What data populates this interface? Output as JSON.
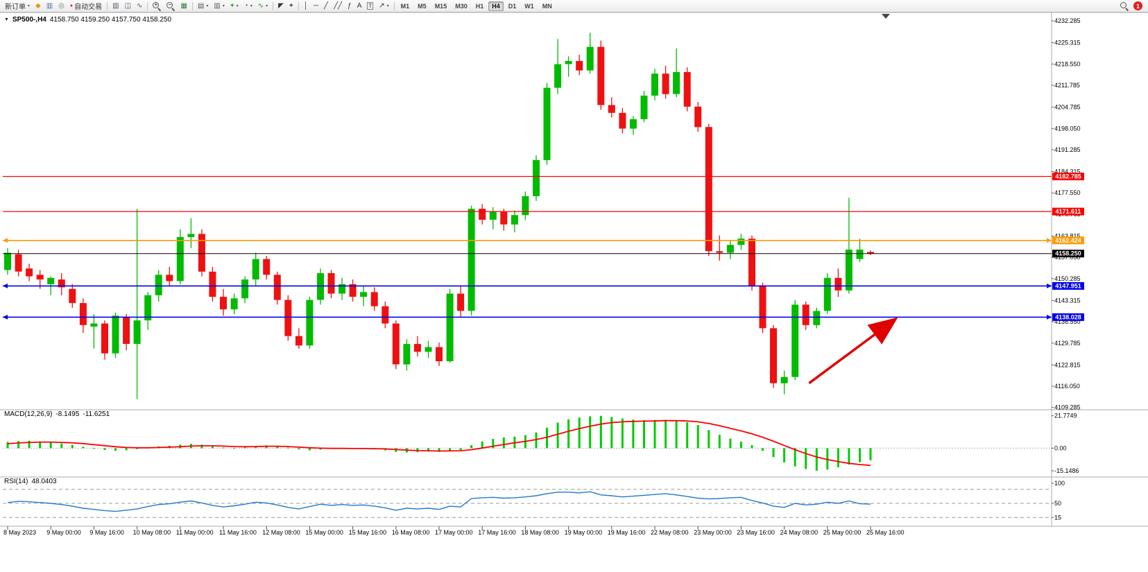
{
  "toolbar": {
    "new_order_label": "新订单",
    "auto_trading_label": "自动交易",
    "items": [
      {
        "type": "button",
        "name": "new-order-button",
        "label": "新订单",
        "caret": true
      },
      {
        "type": "icon",
        "name": "quotes-icon",
        "glyph": "◆",
        "color": "#d4a017"
      },
      {
        "type": "icon",
        "name": "chart-window-icon",
        "glyph": "▥",
        "color": "#4a6fa5"
      },
      {
        "type": "icon",
        "name": "refresh-icon",
        "glyph": "◎",
        "color": "#6f7f6f"
      },
      {
        "type": "button",
        "name": "auto-trading-button",
        "label": "自动交易",
        "icon_glyph": "●",
        "icon_color": "#cc2222"
      },
      {
        "type": "sep"
      },
      {
        "type": "icon",
        "name": "bar-chart-icon",
        "glyph": "▥",
        "color": "#556"
      },
      {
        "type": "icon",
        "name": "candlestick-chart-icon",
        "glyph": "◫",
        "color": "#556"
      },
      {
        "type": "icon",
        "name": "line-chart-icon",
        "glyph": "∿",
        "color": "#556"
      },
      {
        "type": "sep"
      },
      {
        "type": "icon",
        "name": "zoom-in-icon",
        "magnifier": true,
        "sign": "+"
      },
      {
        "type": "icon",
        "name": "zoom-out-icon",
        "magnifier": true,
        "sign": "−"
      },
      {
        "type": "icon",
        "name": "tile-windows-icon",
        "glyph": "▦",
        "color": "#3a7a3a"
      },
      {
        "type": "sep"
      },
      {
        "type": "icon",
        "name": "cascade-windows-icon",
        "glyph": "▤",
        "color": "#556",
        "caret": true
      },
      {
        "type": "icon",
        "name": "arrange-windows-icon",
        "glyph": "▥",
        "color": "#556",
        "caret": true
      },
      {
        "type": "icon",
        "name": "new-chart-icon",
        "glyph": "+",
        "color": "#1a9a1a",
        "bold": true,
        "caret": true
      },
      {
        "type": "icon",
        "name": "timeframe-clock-icon",
        "glyph": "◔",
        "color": "#556",
        "caret": true
      },
      {
        "type": "icon",
        "name": "indicators-icon",
        "glyph": "∿",
        "color": "#1a9a1a",
        "caret": true
      },
      {
        "type": "sep"
      },
      {
        "type": "icon",
        "name": "cursor-icon",
        "glyph": "◤",
        "color": "#333"
      },
      {
        "type": "icon",
        "name": "crosshair-icon",
        "glyph": "+",
        "color": "#333",
        "bold": true
      },
      {
        "type": "sep"
      },
      {
        "type": "icon",
        "name": "vertical-line-icon",
        "glyph": "│",
        "color": "#333"
      },
      {
        "type": "icon",
        "name": "horizontal-line-icon",
        "glyph": "─",
        "color": "#333"
      },
      {
        "type": "icon",
        "name": "trendline-icon",
        "glyph": "╱",
        "color": "#333"
      },
      {
        "type": "icon",
        "name": "channel-icon",
        "glyph": "╱╱",
        "color": "#333"
      },
      {
        "type": "icon",
        "name": "fibonacci-icon",
        "glyph": "ƒ",
        "color": "#333"
      },
      {
        "type": "icon",
        "name": "text-icon",
        "glyph": "A",
        "color": "#333"
      },
      {
        "type": "icon",
        "name": "label-icon",
        "glyph": "T",
        "color": "#333",
        "boxed": true
      },
      {
        "type": "icon",
        "name": "arrows-icon",
        "glyph": "↗",
        "color": "#333",
        "caret": true
      },
      {
        "type": "sep"
      },
      {
        "type": "timeframes"
      }
    ],
    "timeframes": [
      "M1",
      "M5",
      "M15",
      "M30",
      "H1",
      "H4",
      "D1",
      "W1",
      "MN"
    ],
    "active_timeframe": "H4",
    "notification_count": "1"
  },
  "chart_data": [
    {
      "type": "candlestick",
      "title": "SP500-,H4",
      "ohlc_display": "4158.750 4159.250 4157.750 4158.250",
      "ylim": [
        4109.0,
        4233.4
      ],
      "colors": {
        "up": "#00bb00",
        "down": "#ee1111"
      },
      "y_ticks": [
        "4232.285",
        "4225.315",
        "4218.550",
        "4211.785",
        "4204.785",
        "4198.050",
        "4191.285",
        "4184.315",
        "4177.550",
        "4170.785",
        "4163.815",
        "4157.050",
        "4150.285",
        "4143.315",
        "4136.550",
        "4129.785",
        "4122.815",
        "4116.050",
        "4109.285"
      ],
      "x_labels": [
        "8 May 2023",
        "9 May 00:00",
        "9 May 16:00",
        "10 May 08:00",
        "11 May 00:00",
        "11 May 16:00",
        "12 May 08:00",
        "15 May 00:00",
        "15 May 16:00",
        "16 May 08:00",
        "17 May 00:00",
        "17 May 16:00",
        "18 May 08:00",
        "19 May 00:00",
        "19 May 16:00",
        "22 May 08:00",
        "23 May 00:00",
        "23 May 16:00",
        "24 May 08:00",
        "25 May 00:00",
        "25 May 16:00"
      ],
      "levels": [
        {
          "price": 4182.785,
          "label": "4182.785",
          "color": "#ff0000",
          "width": 1.2,
          "handles": false
        },
        {
          "price": 4171.611,
          "label": "4171.611",
          "color": "#ff0000",
          "width": 1.2,
          "handles": false
        },
        {
          "price": 4162.424,
          "label": "4162.424",
          "color": "#ff9900",
          "width": 1.6,
          "handles": true
        },
        {
          "price": 4158.25,
          "label": "4158.250",
          "color": "#000000",
          "width": 1.0,
          "handles": false
        },
        {
          "price": 4147.951,
          "label": "4147.951",
          "color": "#0000ee",
          "width": 1.6,
          "handles": true
        },
        {
          "price": 4138.028,
          "label": "4138.028",
          "color": "#0000ee",
          "width": 1.6,
          "handles": true
        }
      ],
      "arrow": {
        "from_bar": 74.3,
        "from_price": 4117.0,
        "to_bar": 82.0,
        "to_price": 4136.6,
        "color": "#e00000"
      },
      "ohlc": [
        [
          4153.0,
          4160.0,
          4151.5,
          4158.5
        ],
        [
          4158.0,
          4159.5,
          4151.0,
          4152.5
        ],
        [
          4153.5,
          4155.0,
          4149.5,
          4151.0
        ],
        [
          4151.5,
          4153.0,
          4147.0,
          4150.0
        ],
        [
          4148.5,
          4151.0,
          4145.0,
          4150.5
        ],
        [
          4150.0,
          4152.0,
          4145.0,
          4147.5
        ],
        [
          4147.0,
          4148.5,
          4141.0,
          4142.5
        ],
        [
          4142.5,
          4144.0,
          4133.0,
          4135.5
        ],
        [
          4135.0,
          4139.0,
          4128.0,
          4136.0
        ],
        [
          4136.0,
          4137.0,
          4124.5,
          4126.5
        ],
        [
          4126.5,
          4139.5,
          4125.0,
          4138.5
        ],
        [
          4138.0,
          4139.0,
          4127.5,
          4129.5
        ],
        [
          4129.5,
          4172.5,
          4112.0,
          4137.0
        ],
        [
          4137.0,
          4146.0,
          4134.0,
          4145.0
        ],
        [
          4145.0,
          4153.0,
          4143.0,
          4151.5
        ],
        [
          4151.5,
          4154.0,
          4148.0,
          4149.5
        ],
        [
          4149.5,
          4166.0,
          4148.5,
          4163.5
        ],
        [
          4163.5,
          4169.5,
          4160.0,
          4164.5
        ],
        [
          4164.5,
          4166.0,
          4151.0,
          4152.5
        ],
        [
          4152.5,
          4154.0,
          4143.0,
          4144.5
        ],
        [
          4144.5,
          4147.0,
          4138.5,
          4140.5
        ],
        [
          4140.5,
          4145.5,
          4139.0,
          4144.0
        ],
        [
          4144.0,
          4151.0,
          4142.5,
          4150.0
        ],
        [
          4150.0,
          4158.5,
          4148.0,
          4156.5
        ],
        [
          4156.5,
          4157.5,
          4150.0,
          4151.5
        ],
        [
          4151.5,
          4152.5,
          4142.0,
          4143.5
        ],
        [
          4143.5,
          4145.0,
          4130.5,
          4132.0
        ],
        [
          4132.0,
          4134.5,
          4128.0,
          4129.0
        ],
        [
          4129.0,
          4144.5,
          4128.0,
          4143.5
        ],
        [
          4143.5,
          4153.5,
          4142.0,
          4152.0
        ],
        [
          4152.0,
          4153.0,
          4144.0,
          4145.5
        ],
        [
          4145.5,
          4150.5,
          4143.5,
          4148.5
        ],
        [
          4148.5,
          4150.0,
          4143.0,
          4144.5
        ],
        [
          4144.5,
          4148.0,
          4141.5,
          4146.0
        ],
        [
          4146.0,
          4147.5,
          4140.0,
          4141.5
        ],
        [
          4141.5,
          4143.0,
          4134.5,
          4136.0
        ],
        [
          4136.0,
          4137.0,
          4121.5,
          4123.0
        ],
        [
          4123.0,
          4131.0,
          4121.0,
          4129.5
        ],
        [
          4129.5,
          4132.0,
          4125.5,
          4127.0
        ],
        [
          4127.0,
          4130.5,
          4125.0,
          4128.5
        ],
        [
          4128.5,
          4130.0,
          4122.5,
          4124.0
        ],
        [
          4124.0,
          4147.0,
          4123.5,
          4145.5
        ],
        [
          4145.5,
          4148.0,
          4138.0,
          4140.0
        ],
        [
          4140.0,
          4173.5,
          4138.5,
          4172.5
        ],
        [
          4172.5,
          4174.0,
          4167.5,
          4169.0
        ],
        [
          4169.0,
          4173.0,
          4166.0,
          4171.5
        ],
        [
          4171.5,
          4172.5,
          4165.5,
          4167.5
        ],
        [
          4167.5,
          4172.0,
          4165.0,
          4170.5
        ],
        [
          4170.5,
          4178.0,
          4169.0,
          4176.5
        ],
        [
          4176.5,
          4189.5,
          4175.0,
          4188.0
        ],
        [
          4188.0,
          4212.5,
          4186.5,
          4211.0
        ],
        [
          4211.0,
          4226.5,
          4209.0,
          4218.5
        ],
        [
          4218.5,
          4221.0,
          4214.5,
          4219.5
        ],
        [
          4219.5,
          4221.5,
          4215.0,
          4216.5
        ],
        [
          4216.5,
          4228.5,
          4215.5,
          4224.0
        ],
        [
          4224.0,
          4226.0,
          4204.0,
          4205.5
        ],
        [
          4205.5,
          4208.0,
          4201.5,
          4203.0
        ],
        [
          4203.0,
          4204.5,
          4196.5,
          4198.0
        ],
        [
          4198.0,
          4202.0,
          4196.0,
          4201.0
        ],
        [
          4201.0,
          4210.0,
          4200.0,
          4208.5
        ],
        [
          4208.5,
          4217.0,
          4207.0,
          4215.5
        ],
        [
          4215.5,
          4218.0,
          4207.5,
          4209.0
        ],
        [
          4209.0,
          4223.5,
          4208.0,
          4216.0
        ],
        [
          4216.0,
          4217.5,
          4203.5,
          4205.0
        ],
        [
          4205.0,
          4206.5,
          4197.0,
          4198.5
        ],
        [
          4198.5,
          4199.5,
          4157.5,
          4159.0
        ],
        [
          4159.0,
          4164.0,
          4156.0,
          4158.5
        ],
        [
          4158.5,
          4162.5,
          4156.5,
          4161.0
        ],
        [
          4161.0,
          4164.5,
          4159.5,
          4163.0
        ],
        [
          4163.0,
          4164.0,
          4146.5,
          4148.0
        ],
        [
          4148.0,
          4149.0,
          4133.0,
          4134.5
        ],
        [
          4134.5,
          4135.5,
          4115.5,
          4117.0
        ],
        [
          4117.0,
          4121.0,
          4113.5,
          4119.0
        ],
        [
          4119.0,
          4143.5,
          4118.0,
          4142.0
        ],
        [
          4142.0,
          4143.0,
          4134.0,
          4135.5
        ],
        [
          4135.5,
          4141.0,
          4134.5,
          4140.0
        ],
        [
          4140.0,
          4152.0,
          4139.0,
          4150.5
        ],
        [
          4150.5,
          4153.5,
          4144.5,
          4146.5
        ],
        [
          4146.5,
          4176.0,
          4145.5,
          4159.5
        ],
        [
          4156.5,
          4163.0,
          4155.5,
          4159.5
        ],
        [
          4158.75,
          4159.25,
          4157.75,
          4158.25
        ]
      ]
    },
    {
      "type": "bar",
      "title": "MACD(12,26,9)",
      "current": "-8.1495",
      "current_signal": "-11.6251",
      "ylim": [
        -17.5,
        23.5
      ],
      "colors": {
        "histogram": "#00cc00",
        "signal": "#ff0000"
      },
      "y_ticks": [
        "21.7749",
        "0.00",
        "-15.1486"
      ],
      "values": [
        4.2,
        4.8,
        5.0,
        4.6,
        4.0,
        3.2,
        2.2,
        1.0,
        -0.2,
        -1.2,
        -1.8,
        -1.4,
        -0.6,
        0.4,
        1.2,
        1.6,
        2.4,
        2.9,
        2.4,
        1.5,
        0.5,
        0.1,
        0.6,
        1.4,
        1.9,
        1.5,
        0.4,
        -0.9,
        -1.5,
        -1.0,
        -0.5,
        -0.2,
        -0.4,
        -0.3,
        -0.8,
        -1.5,
        -2.5,
        -2.9,
        -2.7,
        -2.3,
        -2.5,
        -1.6,
        -1.2,
        2.0,
        4.5,
        6.2,
        7.2,
        7.8,
        8.8,
        10.6,
        13.8,
        17.2,
        19.4,
        20.6,
        21.4,
        21.77,
        21.0,
        20.0,
        19.2,
        18.8,
        19.0,
        19.1,
        18.7,
        17.4,
        15.6,
        12.2,
        9.0,
        6.4,
        4.4,
        2.0,
        -1.8,
        -6.0,
        -9.6,
        -12.2,
        -14.0,
        -15.15,
        -14.4,
        -12.8,
        -11.0,
        -9.4,
        -8.15
      ],
      "signal": [
        3.0,
        3.5,
        3.9,
        4.1,
        4.1,
        3.9,
        3.6,
        3.1,
        2.4,
        1.7,
        1.0,
        0.5,
        0.3,
        0.3,
        0.5,
        0.7,
        1.0,
        1.4,
        1.6,
        1.6,
        1.4,
        1.1,
        1.0,
        1.1,
        1.3,
        1.3,
        1.1,
        0.7,
        0.3,
        0.0,
        -0.1,
        -0.1,
        -0.2,
        -0.2,
        -0.3,
        -0.5,
        -0.9,
        -1.3,
        -1.6,
        -1.7,
        -1.9,
        -1.8,
        -1.7,
        -1.0,
        0.1,
        1.3,
        2.5,
        3.6,
        4.6,
        5.8,
        7.4,
        9.4,
        11.4,
        13.2,
        14.8,
        16.2,
        17.2,
        17.7,
        18.0,
        18.2,
        18.3,
        18.5,
        18.5,
        18.3,
        17.7,
        16.6,
        15.1,
        13.4,
        11.6,
        9.7,
        7.4,
        4.7,
        1.8,
        -1.0,
        -3.6,
        -5.9,
        -7.6,
        -9.0,
        -10.2,
        -11.0,
        -11.6
      ]
    },
    {
      "type": "line",
      "title": "RSI(14)",
      "current": "48.0403",
      "ylim": [
        0,
        100
      ],
      "colors": {
        "line": "#2277cc"
      },
      "y_ticks": [
        "100",
        "50",
        "15"
      ],
      "level_lines": [
        85,
        50,
        15
      ],
      "values": [
        52,
        55,
        54,
        52,
        50,
        47,
        43,
        38,
        35,
        32,
        30,
        33,
        36,
        42,
        47,
        49,
        53,
        56,
        51,
        45,
        41,
        44,
        48,
        53,
        51,
        46,
        40,
        36,
        42,
        48,
        45,
        47,
        45,
        46,
        43,
        39,
        33,
        38,
        36,
        38,
        35,
        43,
        41,
        62,
        64,
        65,
        63,
        64,
        66,
        69,
        74,
        78,
        78,
        76,
        79,
        71,
        69,
        66,
        68,
        70,
        72,
        74,
        71,
        67,
        63,
        61,
        62,
        64,
        65,
        57,
        51,
        43,
        40,
        50,
        46,
        48,
        53,
        50,
        56,
        49,
        48.04
      ]
    }
  ]
}
